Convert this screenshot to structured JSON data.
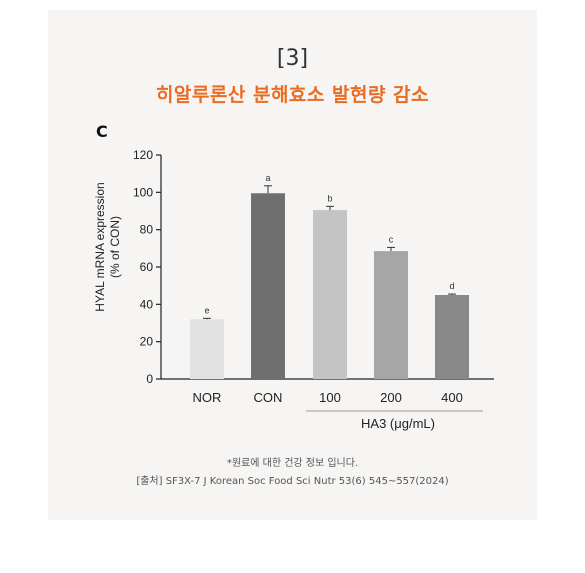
{
  "card": {
    "background": "#f6f5f4"
  },
  "header": {
    "number": "[3]",
    "title": "히알루론산 분해효소 발현량 감소",
    "title_color": "#ea6c23"
  },
  "panel_label": "C",
  "chart_data": {
    "type": "bar",
    "ylabel_line1": "HYAL mRNA expression",
    "ylabel_line2": "(% of CON)",
    "xlabel": "HA3 (μg/mL)",
    "ylim": [
      0,
      120
    ],
    "yticks": [
      0,
      20,
      40,
      60,
      80,
      100,
      120
    ],
    "categories": [
      "NOR",
      "CON",
      "100",
      "200",
      "400"
    ],
    "values": [
      32,
      99.5,
      90.5,
      68.5,
      45
    ],
    "errors": [
      0.5,
      4,
      2,
      2,
      0.5
    ],
    "letters": [
      "e",
      "a",
      "b",
      "c",
      "d"
    ],
    "colors": [
      "#e2e2e2",
      "#6f6f6f",
      "#c4c4c4",
      "#a6a6a6",
      "#898989"
    ],
    "grid": false
  },
  "footer": {
    "note": "*원료에 대한 건강 정보 입니다.",
    "source": "[출처] SF3X-7 J Korean Soc Food Sci Nutr 53(6) 545~557(2024)"
  }
}
